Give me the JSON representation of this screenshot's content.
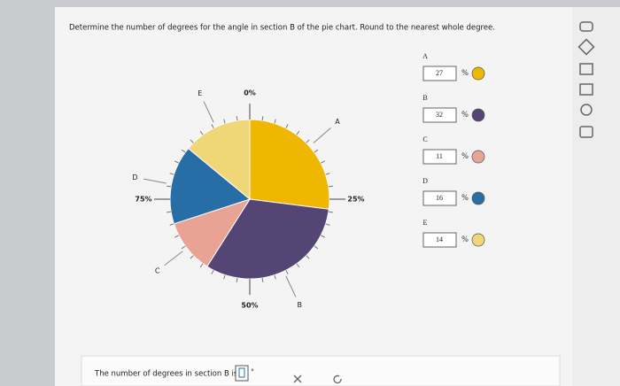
{
  "question": "Determine the number of degrees for the angle in section B of the pie chart. Round to the nearest whole degree.",
  "answer": {
    "prompt": "The number of degrees in section B is",
    "unit": "°"
  },
  "chart_data": {
    "type": "pie",
    "categories": [
      "A",
      "B",
      "C",
      "D",
      "E"
    ],
    "values": [
      27,
      32,
      11,
      16,
      14
    ],
    "colors": [
      "#efb602",
      "#554574",
      "#e9a395",
      "#276da6",
      "#efd676"
    ],
    "unit": "%",
    "ticks": [
      {
        "value": 0,
        "label": "0%"
      },
      {
        "value": 25,
        "label": "25%"
      },
      {
        "value": 50,
        "label": "50%"
      },
      {
        "value": 75,
        "label": "75%"
      }
    ]
  }
}
